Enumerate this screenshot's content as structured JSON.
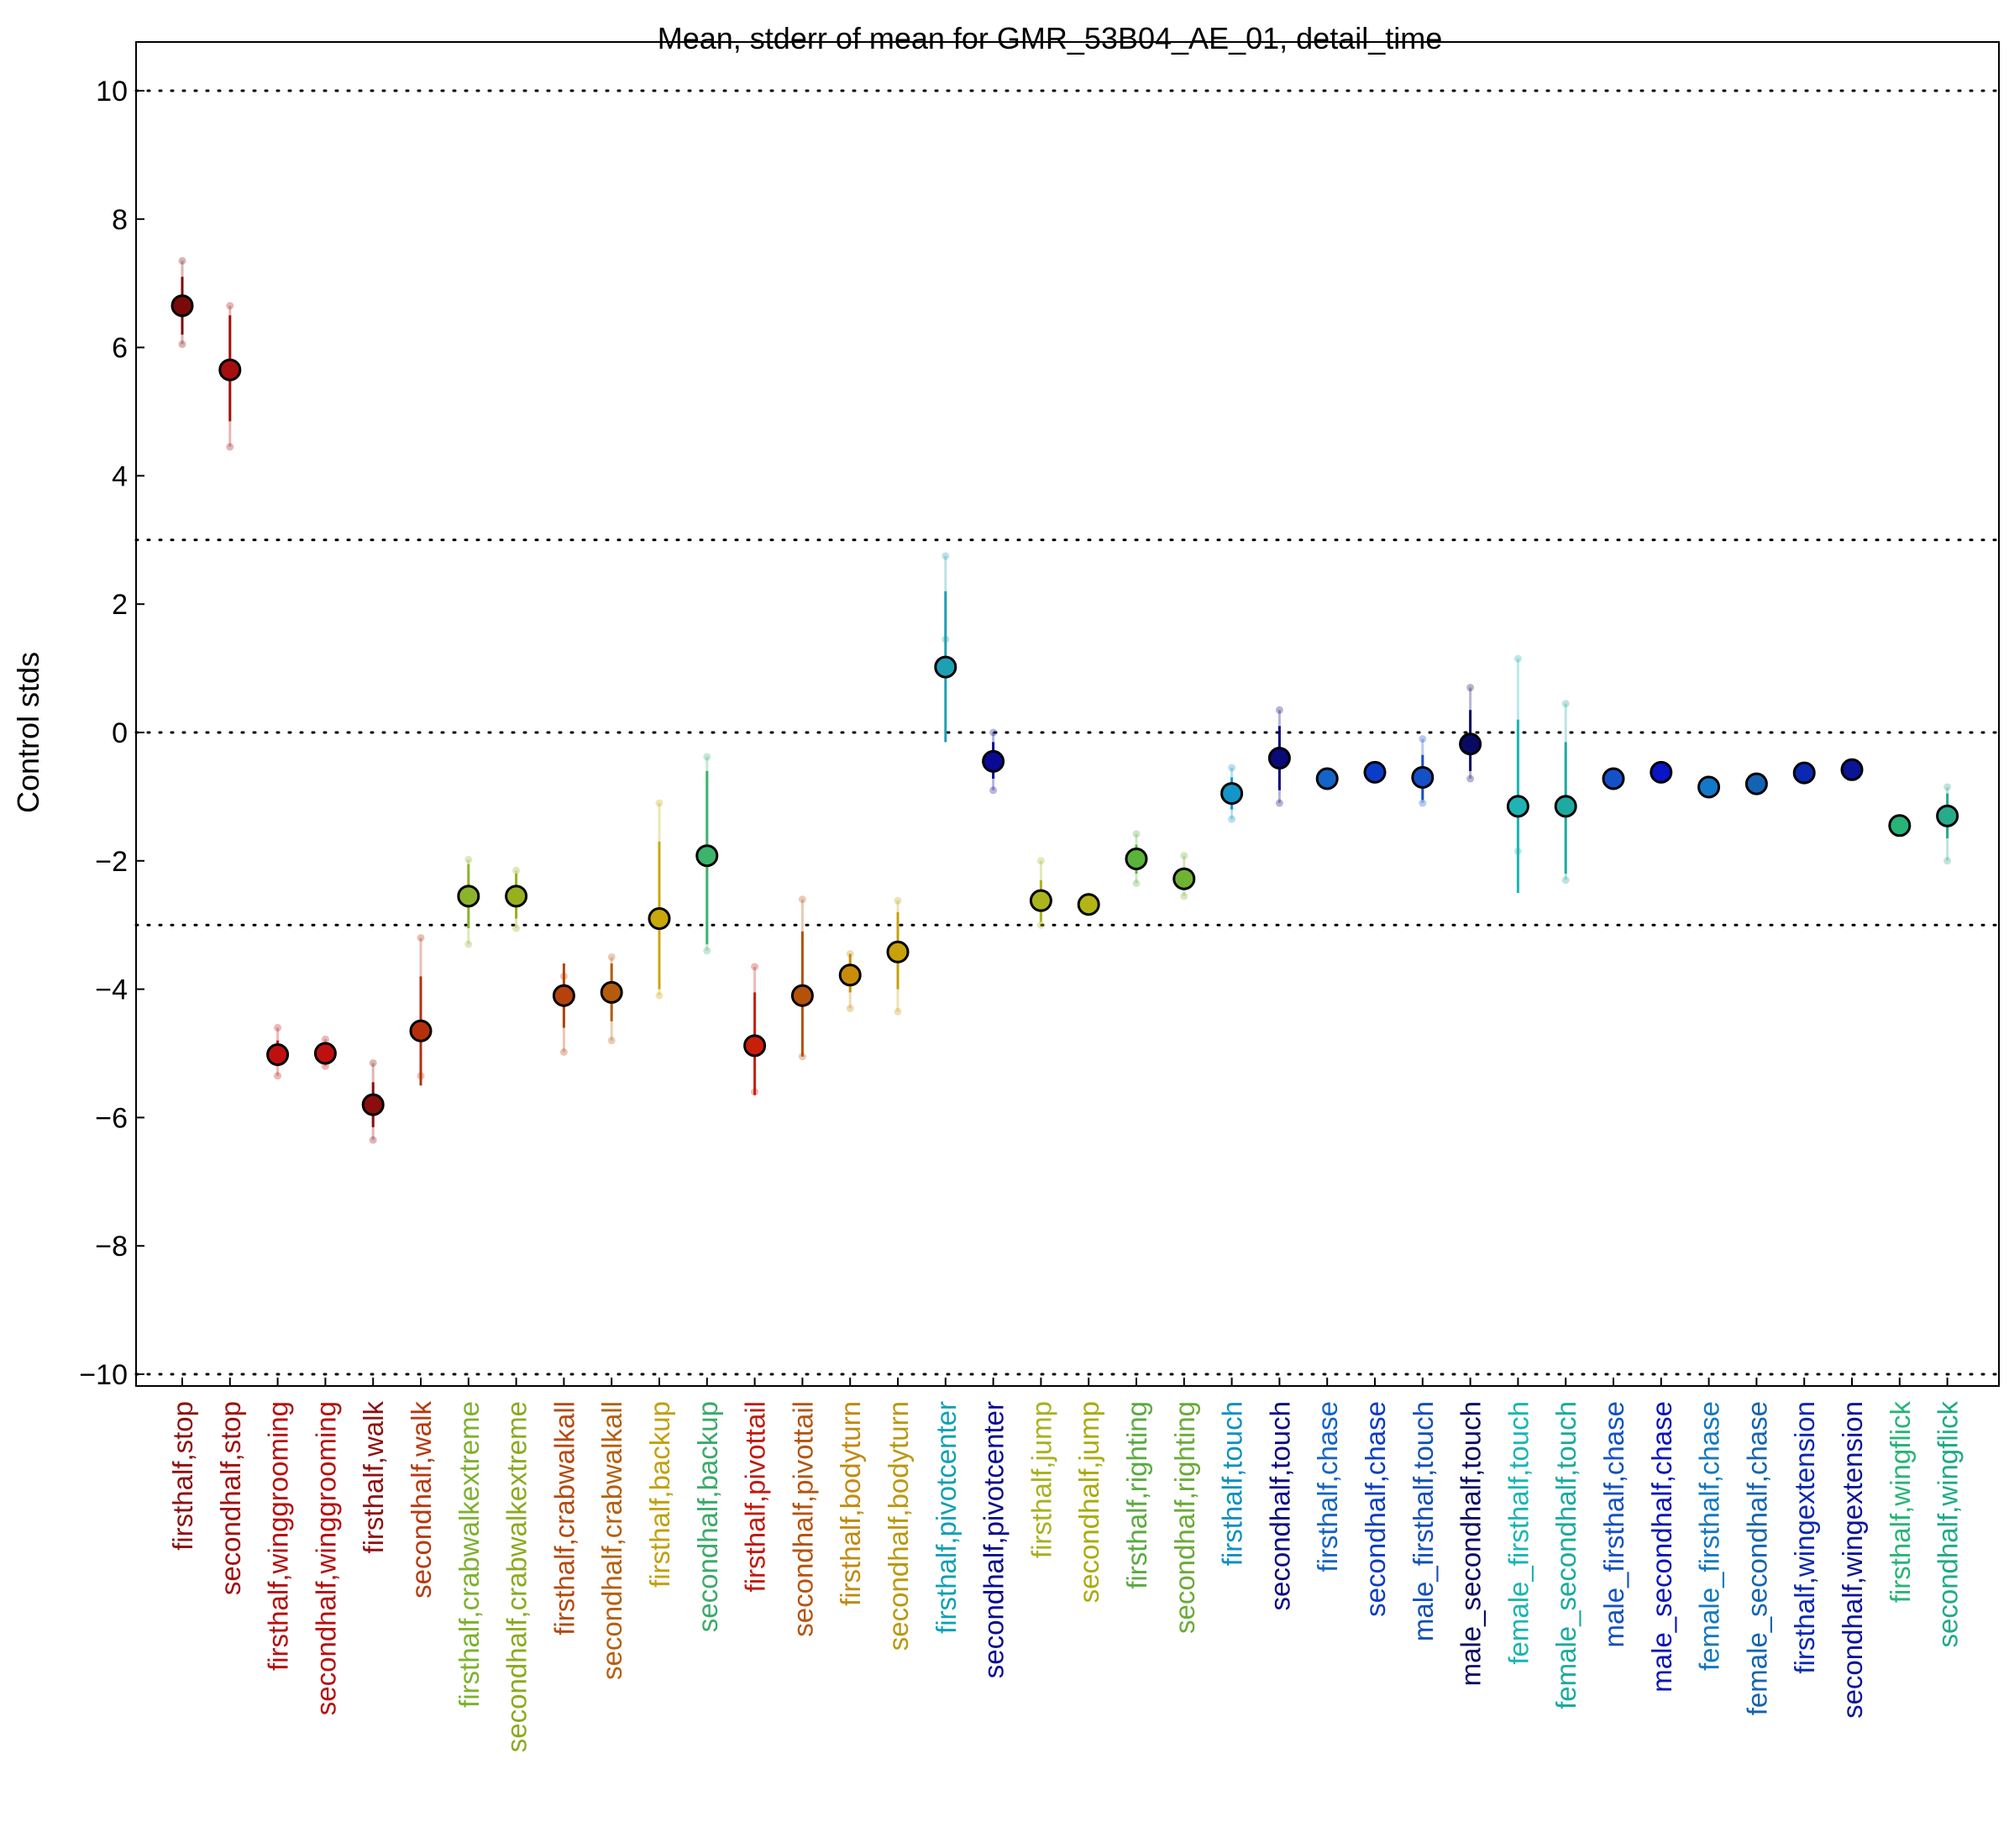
{
  "chart_data": {
    "type": "scatter",
    "title": "Mean, stderr of mean for GMR_53B04_AE_01, detail_time",
    "xlabel": "",
    "ylabel": "Control stds",
    "ylim": [
      -10,
      10
    ],
    "yticks": [
      -10,
      -8,
      -6,
      -4,
      -2,
      0,
      2,
      4,
      6,
      8,
      10
    ],
    "ytick_labels": [
      "−10",
      "−8",
      "−6",
      "−4",
      "−2",
      "0",
      "2",
      "4",
      "6",
      "8",
      "10"
    ],
    "reference_lines": [
      -10,
      -3,
      0,
      3,
      10
    ],
    "grid": false,
    "points": [
      {
        "label": "firsthalf,stop",
        "mean": 6.65,
        "err_low": 6.2,
        "err_high": 7.1,
        "ind_low": 6.05,
        "ind_high": 7.35,
        "color": "#7a0a0a",
        "label_color": "#8c1212"
      },
      {
        "label": "secondhalf,stop",
        "mean": 5.65,
        "err_low": 4.85,
        "err_high": 6.5,
        "ind_low": 4.45,
        "ind_high": 6.65,
        "color": "#a50f0f",
        "label_color": "#a01010"
      },
      {
        "label": "firsthalf,winggrooming",
        "mean": -5.02,
        "err_low": -5.2,
        "err_high": -4.8,
        "ind_low": -5.35,
        "ind_high": -4.6,
        "color": "#bf1010",
        "label_color": "#b51010"
      },
      {
        "label": "secondhalf,winggrooming",
        "mean": -5.0,
        "err_low": -5.12,
        "err_high": -4.88,
        "ind_low": -5.2,
        "ind_high": -4.78,
        "color": "#bf1010",
        "label_color": "#b51010"
      },
      {
        "label": "firsthalf,walk",
        "mean": -5.8,
        "err_low": -6.15,
        "err_high": -5.45,
        "ind_low": -6.35,
        "ind_high": -5.15,
        "color": "#8a0e0e",
        "label_color": "#8c1212"
      },
      {
        "label": "secondhalf,walk",
        "mean": -4.65,
        "err_low": -5.5,
        "err_high": -3.8,
        "ind_low": -5.35,
        "ind_high": -3.2,
        "color": "#b4300c",
        "label_color": "#b53a10"
      },
      {
        "label": "firsthalf,crabwalkextreme",
        "mean": -2.55,
        "err_low": -3.05,
        "err_high": -2.05,
        "ind_low": -3.3,
        "ind_high": -1.98,
        "color": "#8cb42a",
        "label_color": "#7eb030"
      },
      {
        "label": "secondhalf,crabwalkextreme",
        "mean": -2.55,
        "err_low": -2.9,
        "err_high": -2.2,
        "ind_low": -3.05,
        "ind_high": -2.15,
        "color": "#96b01e",
        "label_color": "#8aaa20"
      },
      {
        "label": "firsthalf,crabwalkall",
        "mean": -4.1,
        "err_low": -4.6,
        "err_high": -3.6,
        "ind_low": -4.98,
        "ind_high": -3.8,
        "color": "#b4420c",
        "label_color": "#b44a10"
      },
      {
        "label": "secondhalf,crabwalkall",
        "mean": -4.05,
        "err_low": -4.5,
        "err_high": -3.6,
        "ind_low": -4.8,
        "ind_high": -3.5,
        "color": "#b45c0c",
        "label_color": "#b46010"
      },
      {
        "label": "firsthalf,backup",
        "mean": -2.9,
        "err_low": -4.0,
        "err_high": -1.7,
        "ind_low": -4.1,
        "ind_high": -1.1,
        "color": "#c8a80a",
        "label_color": "#c0a010"
      },
      {
        "label": "secondhalf,backup",
        "mean": -1.92,
        "err_low": -3.3,
        "err_high": -0.6,
        "ind_low": -3.4,
        "ind_high": -0.38,
        "color": "#3cb46c",
        "label_color": "#3aaa6a"
      },
      {
        "label": "firsthalf,pivottail",
        "mean": -4.88,
        "err_low": -5.65,
        "err_high": -4.05,
        "ind_low": -5.6,
        "ind_high": -3.65,
        "color": "#c81e0a",
        "label_color": "#c01a10"
      },
      {
        "label": "secondhalf,pivottail",
        "mean": -4.1,
        "err_low": -5.05,
        "err_high": -3.1,
        "ind_low": -5.05,
        "ind_high": -2.6,
        "color": "#b4520a",
        "label_color": "#b45410"
      },
      {
        "label": "firsthalf,bodyturn",
        "mean": -3.78,
        "err_low": -4.05,
        "err_high": -3.45,
        "ind_low": -4.3,
        "ind_high": -3.45,
        "color": "#c88c0a",
        "label_color": "#c08a10"
      },
      {
        "label": "secondhalf,bodyturn",
        "mean": -3.42,
        "err_low": -4.0,
        "err_high": -2.8,
        "ind_low": -4.35,
        "ind_high": -2.62,
        "color": "#c8a00a",
        "label_color": "#b89810"
      },
      {
        "label": "firsthalf,pivotcenter",
        "mean": 1.02,
        "err_low": -0.15,
        "err_high": 2.2,
        "ind_low": 1.45,
        "ind_high": 2.75,
        "color": "#1ea0b4",
        "label_color": "#10a0b4"
      },
      {
        "label": "secondhalf,pivotcenter",
        "mean": -0.45,
        "err_low": -0.72,
        "err_high": -0.15,
        "ind_low": -0.9,
        "ind_high": 0.0,
        "color": "#0a0a96",
        "label_color": "#0a0a8c"
      },
      {
        "label": "firsthalf,jump",
        "mean": -2.62,
        "err_low": -2.95,
        "err_high": -2.3,
        "ind_low": -3.0,
        "ind_high": -2.0,
        "color": "#aab41e",
        "label_color": "#a8b020"
      },
      {
        "label": "secondhalf,jump",
        "mean": -2.68,
        "err_low": -2.78,
        "err_high": -2.58,
        "ind_low": -2.8,
        "ind_high": -2.55,
        "color": "#b4b414",
        "label_color": "#aaaa10"
      },
      {
        "label": "firsthalf,righting",
        "mean": -1.97,
        "err_low": -2.2,
        "err_high": -1.75,
        "ind_low": -2.35,
        "ind_high": -1.58,
        "color": "#5ab43c",
        "label_color": "#5aaa40"
      },
      {
        "label": "secondhalf,righting",
        "mean": -2.28,
        "err_low": -2.45,
        "err_high": -2.1,
        "ind_low": -2.55,
        "ind_high": -1.92,
        "color": "#6eb432",
        "label_color": "#6aaa38"
      },
      {
        "label": "firsthalf,touch",
        "mean": -0.95,
        "err_low": -1.2,
        "err_high": -0.7,
        "ind_low": -1.35,
        "ind_high": -0.55,
        "color": "#1496c8",
        "label_color": "#1090c0"
      },
      {
        "label": "secondhalf,touch",
        "mean": -0.4,
        "err_low": -0.9,
        "err_high": 0.1,
        "ind_low": -1.1,
        "ind_high": 0.35,
        "color": "#0a0a78",
        "label_color": "#0a0a80"
      },
      {
        "label": "firsthalf,chase",
        "mean": -0.72,
        "err_low": -0.78,
        "err_high": -0.66,
        "ind_low": -0.8,
        "ind_high": -0.64,
        "color": "#1464c8",
        "label_color": "#1464c0"
      },
      {
        "label": "secondhalf,chase",
        "mean": -0.62,
        "err_low": -0.68,
        "err_high": -0.56,
        "ind_low": -0.7,
        "ind_high": -0.54,
        "color": "#0a3cc8",
        "label_color": "#0a3cc0"
      },
      {
        "label": "male_firsthalf,touch",
        "mean": -0.7,
        "err_low": -1.05,
        "err_high": -0.35,
        "ind_low": -1.1,
        "ind_high": -0.1,
        "color": "#1450c8",
        "label_color": "#1450b4"
      },
      {
        "label": "male_secondhalf,touch",
        "mean": -0.18,
        "err_low": -0.6,
        "err_high": 0.35,
        "ind_low": -0.72,
        "ind_high": 0.7,
        "color": "#0a0a64",
        "label_color": "#0a0a64"
      },
      {
        "label": "female_firsthalf,touch",
        "mean": -1.15,
        "err_low": -2.5,
        "err_high": 0.2,
        "ind_low": -1.85,
        "ind_high": 1.15,
        "color": "#1eb4b4",
        "label_color": "#1ab4b4"
      },
      {
        "label": "female_secondhalf,touch",
        "mean": -1.15,
        "err_low": -2.2,
        "err_high": -0.15,
        "ind_low": -2.3,
        "ind_high": 0.45,
        "color": "#1eaaa0",
        "label_color": "#1aaaa0"
      },
      {
        "label": "male_firsthalf,chase",
        "mean": -0.72,
        "err_low": -0.78,
        "err_high": -0.66,
        "ind_low": -0.8,
        "ind_high": -0.64,
        "color": "#1450c8",
        "label_color": "#1450c0"
      },
      {
        "label": "male_secondhalf,chase",
        "mean": -0.62,
        "err_low": -0.68,
        "err_high": -0.56,
        "ind_low": -0.7,
        "ind_high": -0.54,
        "color": "#0a14c8",
        "label_color": "#0a14b4"
      },
      {
        "label": "female_firsthalf,chase",
        "mean": -0.85,
        "err_low": -0.9,
        "err_high": -0.8,
        "ind_low": -0.92,
        "ind_high": -0.78,
        "color": "#1478c8",
        "label_color": "#1478c0"
      },
      {
        "label": "female_secondhalf,chase",
        "mean": -0.8,
        "err_low": -0.86,
        "err_high": -0.74,
        "ind_low": -0.88,
        "ind_high": -0.72,
        "color": "#1464b4",
        "label_color": "#1464b0"
      },
      {
        "label": "firsthalf,wingextension",
        "mean": -0.63,
        "err_low": -0.69,
        "err_high": -0.57,
        "ind_low": -0.7,
        "ind_high": -0.55,
        "color": "#0a28b4",
        "label_color": "#0a28b0"
      },
      {
        "label": "secondhalf,wingextension",
        "mean": -0.58,
        "err_low": -0.64,
        "err_high": -0.52,
        "ind_low": -0.65,
        "ind_high": -0.5,
        "color": "#0a1496",
        "label_color": "#0a1496"
      },
      {
        "label": "firsthalf,wingflick",
        "mean": -1.45,
        "err_low": -1.5,
        "err_high": -1.4,
        "ind_low": -1.52,
        "ind_high": -1.38,
        "color": "#28b478",
        "label_color": "#28b478"
      },
      {
        "label": "secondhalf,wingflick",
        "mean": -1.3,
        "err_low": -1.65,
        "err_high": -0.95,
        "ind_low": -2.0,
        "ind_high": -0.85,
        "color": "#28aa8c",
        "label_color": "#20aa88"
      }
    ]
  }
}
